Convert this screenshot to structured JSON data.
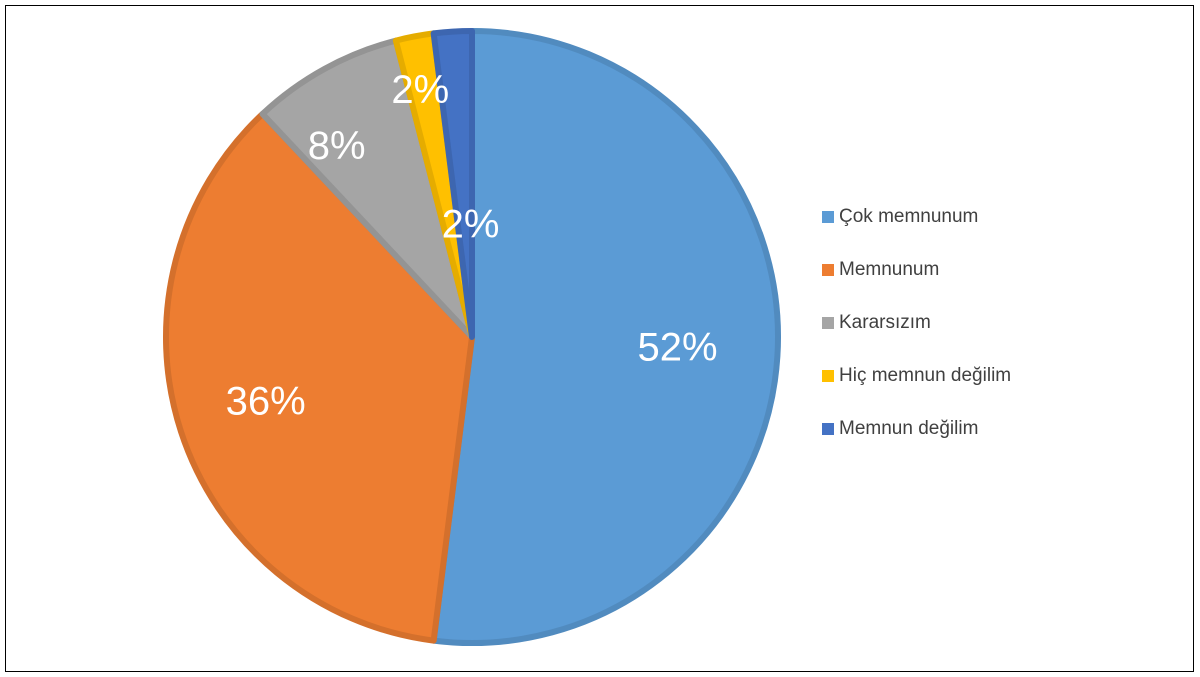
{
  "chart_data": {
    "type": "pie",
    "categories": [
      "Çok memnunum",
      "Memnunum",
      "Kararsızım",
      "Hiç memnun değilim",
      "Memnun değilim"
    ],
    "values": [
      52,
      36,
      8,
      2,
      2
    ],
    "value_labels": [
      "52%",
      "36%",
      "8%",
      "2%",
      "2%"
    ],
    "colors": [
      "#5b9bd5",
      "#ed7d31",
      "#a5a5a5",
      "#ffc000",
      "#4472c4"
    ],
    "legend": "right"
  }
}
